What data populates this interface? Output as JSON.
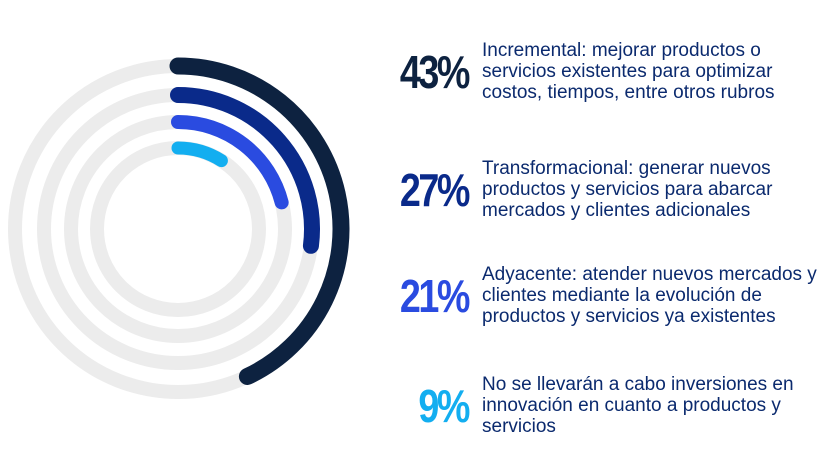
{
  "chart_data": {
    "type": "radial-bar",
    "series": [
      {
        "value": 43,
        "value_label": "43%",
        "label": "Incremental: mejorar productos o servicios existentes para optimizar costos, tiempos, entre otros rubros",
        "color": "#0d2240"
      },
      {
        "value": 27,
        "value_label": "27%",
        "label": "Transformacional: generar nuevos productos y servicios para abarcar mercados y clientes adicionales",
        "color": "#0a2a8a"
      },
      {
        "value": 21,
        "value_label": "21%",
        "label": "Adyacente: atender nuevos mercados y clientes mediante la evolución de productos y servicios ya existentes",
        "color": "#2a4be0"
      },
      {
        "value": 9,
        "value_label": "9%",
        "label": "No se llevarán a cabo inversiones en innovación en cuanto a productos y servicios",
        "color": "#13aef0"
      }
    ],
    "track_color": "#ececec",
    "max": 100
  }
}
